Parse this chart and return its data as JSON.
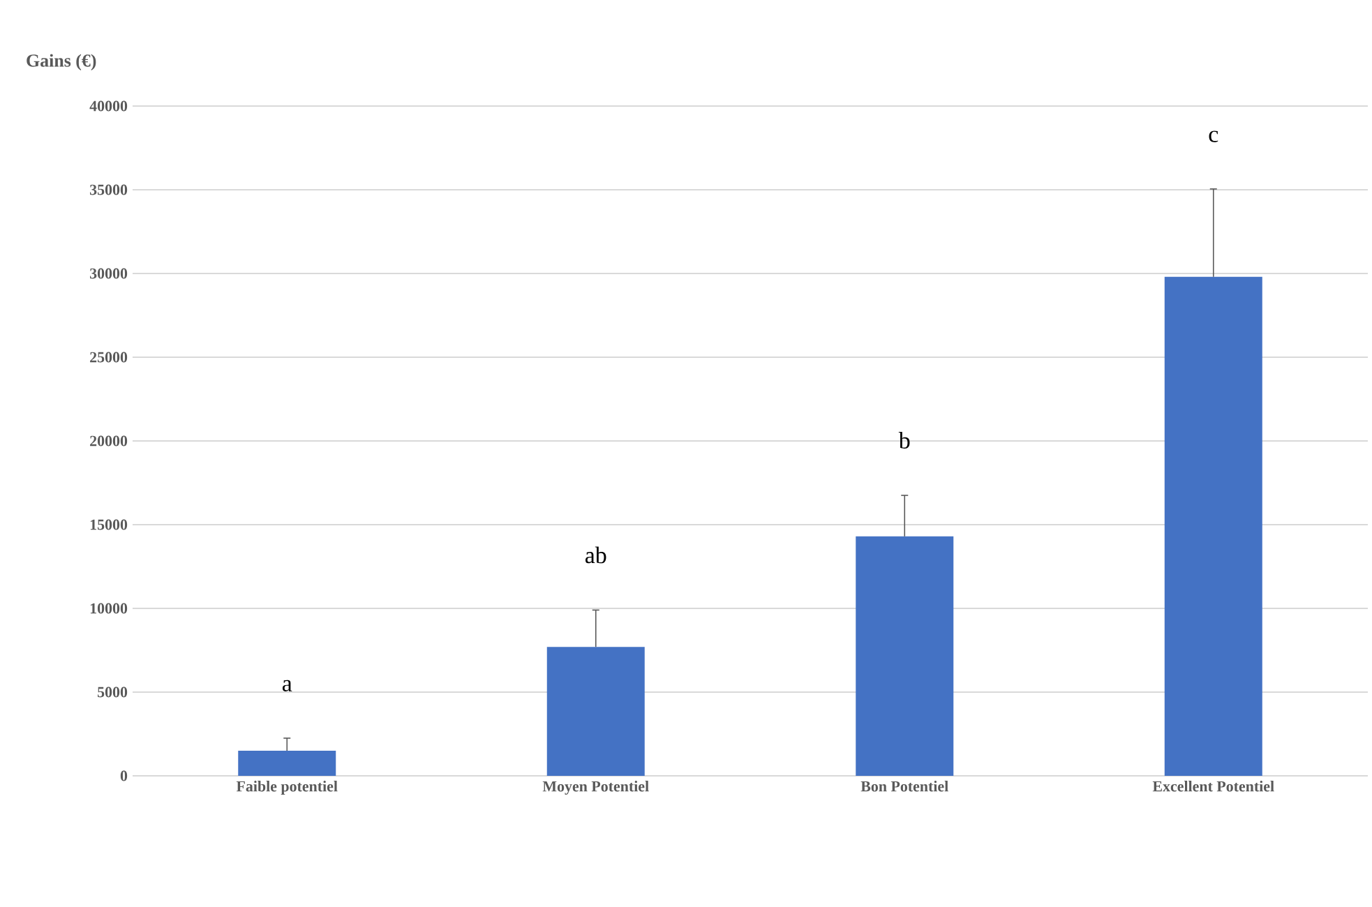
{
  "chart_data": {
    "type": "bar",
    "ylabel": "Gains (€)",
    "categories": [
      "Faible potentiel",
      "Moyen Potentiel",
      "Bon Potentiel",
      "Excellent Potentiel"
    ],
    "values": [
      1500,
      7700,
      14300,
      29800
    ],
    "errors": [
      [
        1500,
        2250
      ],
      [
        7700,
        9900
      ],
      [
        14300,
        16750
      ],
      [
        29800,
        35050
      ]
    ],
    "color": "#4472c4",
    "ylim": [
      0,
      40000
    ],
    "yticks": [
      0,
      5000,
      10000,
      15000,
      20000,
      25000,
      30000,
      35000,
      40000
    ],
    "grid": "y",
    "annotations": [
      "a",
      "ab",
      "b",
      "c"
    ]
  }
}
